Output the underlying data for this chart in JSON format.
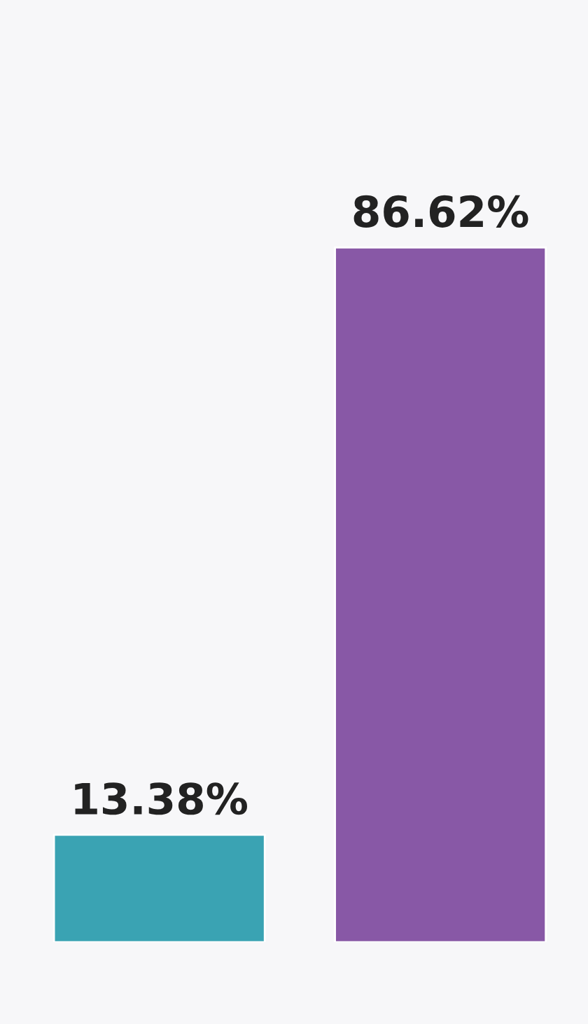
{
  "chart_data": {
    "type": "bar",
    "categories": [
      null,
      null
    ],
    "values": [
      13.38,
      86.62
    ],
    "colors": [
      "#3aa3b3",
      "#8858a6"
    ],
    "value_labels": [
      "13.38%",
      "86.62%"
    ]
  }
}
